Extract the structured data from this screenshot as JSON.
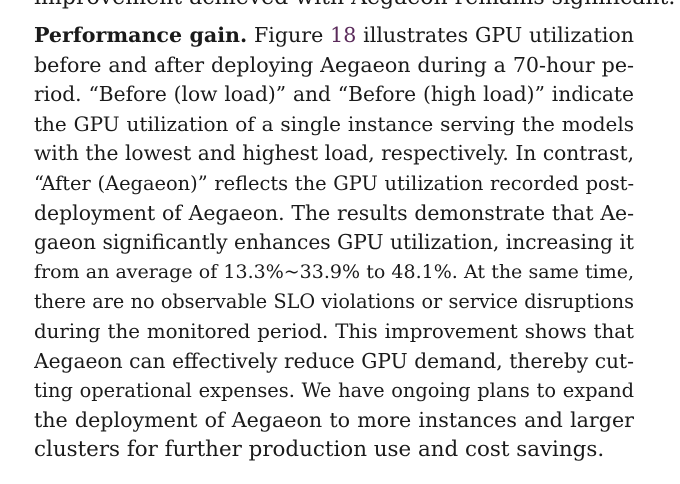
{
  "previous_paragraph_tail": "improvement achieved with Aegaeon remains significant.",
  "paragraph": {
    "run_in_heading": "Performance gain.",
    "figure_ref": "18",
    "lines": [
      {
        "before": " Figure ",
        "after": " illustrates GPU utilization"
      },
      {
        "text": "before and after deploying Aegaeon during a 70-hour pe-"
      },
      {
        "text": "riod. “Before (low load)” and “Before (high load)” indicate"
      },
      {
        "text": "the GPU utilization of a single instance serving the models"
      },
      {
        "text": "with the lowest and highest load, respectively. In contrast,"
      },
      {
        "text": "“After (Aegaeon)” reflects the GPU utilization recorded post-"
      },
      {
        "text": "deployment of Aegaeon. The results demonstrate that Ae-"
      },
      {
        "text": "gaeon significantly enhances GPU utilization, increasing it"
      },
      {
        "text": "from an average of 13.3%~33.9% to 48.1%. At the same time,"
      },
      {
        "text": "there are no observable SLO violations or service disruptions"
      },
      {
        "text": "during the monitored period. This improvement shows that"
      },
      {
        "text": "Aegaeon can effectively reduce GPU demand, thereby cut-"
      },
      {
        "text": "ting operational expenses. We have ongoing plans to expand"
      },
      {
        "text": "the deployment of Aegaeon to more instances and larger"
      },
      {
        "text": "clusters for further production use and cost savings."
      }
    ]
  }
}
